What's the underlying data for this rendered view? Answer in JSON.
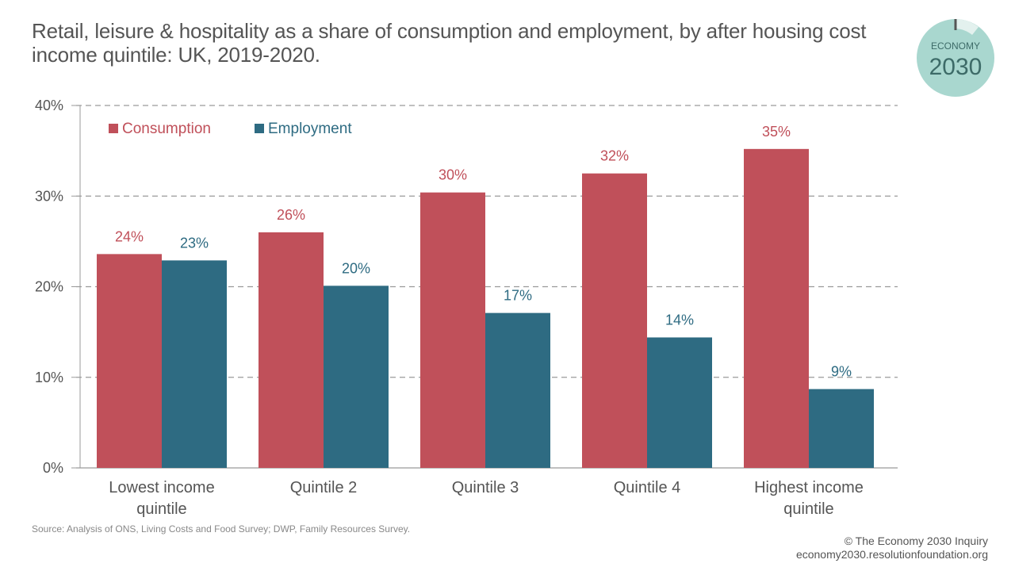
{
  "header": {
    "title": "Retail, leisure & hospitality as a share of consumption and employment, by after housing cost income quintile: UK, 2019-2020."
  },
  "logo": {
    "line1": "ECONOMY",
    "line2": "2030",
    "color": "#a9d7cf"
  },
  "footer": {
    "source": "Source: Analysis of ONS, Living Costs and Food Survey; DWP, Family Resources Survey.",
    "copyright": "© The Economy 2030 Inquiry",
    "url": "economy2030.resolutionfoundation.org"
  },
  "chart_data": {
    "type": "bar",
    "categories": [
      [
        "Lowest income",
        "quintile"
      ],
      [
        "Quintile 2"
      ],
      [
        "Quintile 3"
      ],
      [
        "Quintile 4"
      ],
      [
        "Highest income",
        "quintile"
      ]
    ],
    "series": [
      {
        "name": "Consumption",
        "color": "#c0505a",
        "values": [
          23.6,
          26.0,
          30.4,
          32.5,
          35.2
        ],
        "labels": [
          "24%",
          "26%",
          "30%",
          "32%",
          "35%"
        ]
      },
      {
        "name": "Employment",
        "color": "#2e6b82",
        "values": [
          22.9,
          20.1,
          17.1,
          14.4,
          8.7
        ],
        "labels": [
          "23%",
          "20%",
          "17%",
          "14%",
          "9%"
        ]
      }
    ],
    "ylim": [
      0,
      40
    ],
    "yticks": [
      0,
      10,
      20,
      30,
      40
    ],
    "ytick_labels": [
      "0%",
      "10%",
      "20%",
      "30%",
      "40%"
    ],
    "grid": true,
    "legend_position": "top-left"
  }
}
